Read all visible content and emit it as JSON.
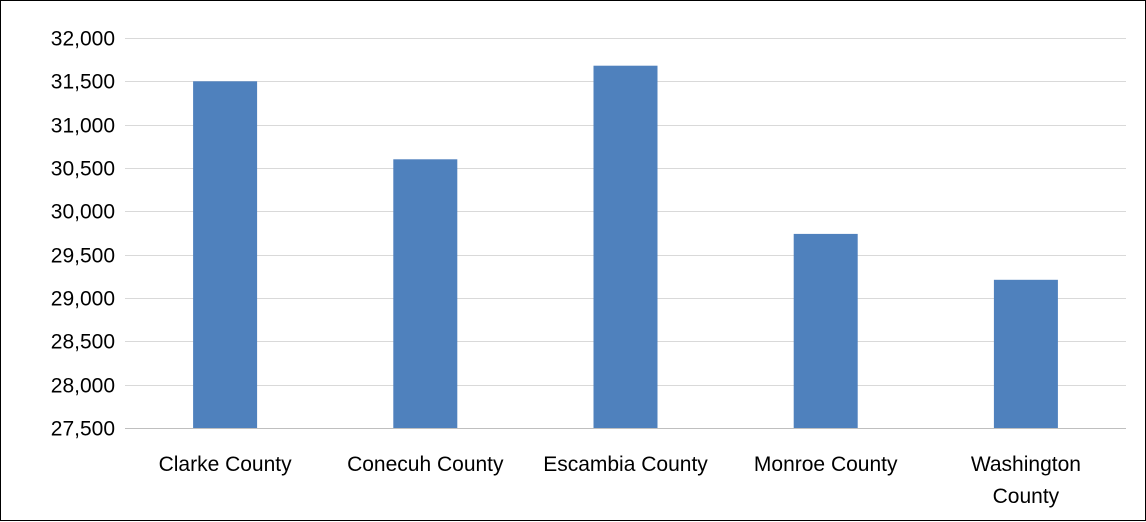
{
  "chart_data": {
    "type": "bar",
    "categories": [
      "Clarke County",
      "Conecuh County",
      "Escambia County",
      "Monroe County",
      "Washington County"
    ],
    "category_label_lines": [
      [
        "Clarke County"
      ],
      [
        "Conecuh County"
      ],
      [
        "Escambia County"
      ],
      [
        "Monroe County"
      ],
      [
        "Washington",
        "County"
      ]
    ],
    "values": [
      31500,
      30600,
      31680,
      29740,
      29210
    ],
    "ylim": [
      27500,
      32000
    ],
    "y_ticks": [
      27500,
      28000,
      28500,
      29000,
      29500,
      30000,
      30500,
      31000,
      31500,
      32000
    ],
    "y_tick_labels": [
      "27,500",
      "28,000",
      "28,500",
      "29,000",
      "29,500",
      "30,000",
      "30,500",
      "31,000",
      "31,500",
      "32,000"
    ],
    "grid": true,
    "legend": "none",
    "title": "",
    "xlabel": "",
    "ylabel": ""
  },
  "colors": {
    "bar": "#4f81bd",
    "grid": "#d9d9d9",
    "axis": "#bfbfbf",
    "text": "#000000"
  }
}
